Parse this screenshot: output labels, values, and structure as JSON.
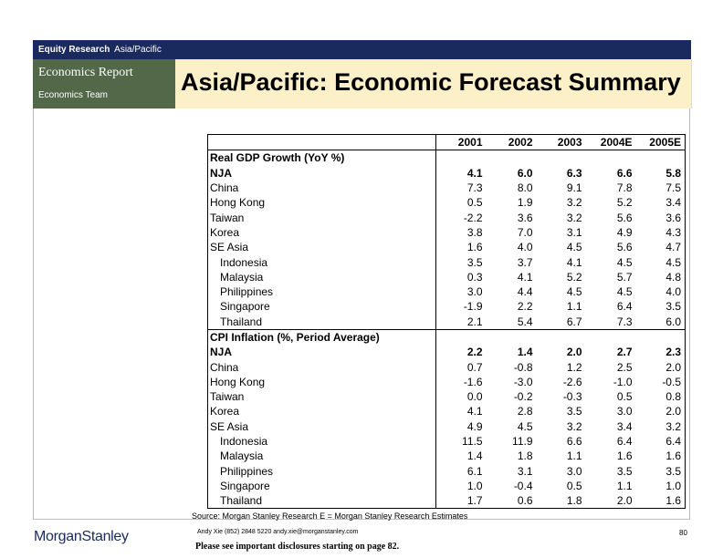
{
  "header": {
    "bar_bold": "Equity Research",
    "bar_region": "Asia/Pacific",
    "report_type": "Economics Report",
    "team": "Economics Team",
    "title": "Asia/Pacific: Economic Forecast Summary"
  },
  "table": {
    "columns": [
      "",
      "2001",
      "2002",
      "2003",
      "2004E",
      "2005E"
    ],
    "sections": [
      {
        "title": "Real GDP Growth (YoY %)",
        "rows": [
          {
            "label": "NJA",
            "values": [
              "4.1",
              "6.0",
              "6.3",
              "6.6",
              "5.8"
            ],
            "bold": true,
            "indent": false
          },
          {
            "label": "China",
            "values": [
              "7.3",
              "8.0",
              "9.1",
              "7.8",
              "7.5"
            ],
            "bold": false,
            "indent": false
          },
          {
            "label": "Hong Kong",
            "values": [
              "0.5",
              "1.9",
              "3.2",
              "5.2",
              "3.4"
            ],
            "bold": false,
            "indent": false
          },
          {
            "label": "Taiwan",
            "values": [
              "-2.2",
              "3.6",
              "3.2",
              "5.6",
              "3.6"
            ],
            "bold": false,
            "indent": false
          },
          {
            "label": "Korea",
            "values": [
              "3.8",
              "7.0",
              "3.1",
              "4.9",
              "4.3"
            ],
            "bold": false,
            "indent": false
          },
          {
            "label": "SE Asia",
            "values": [
              "1.6",
              "4.0",
              "4.5",
              "5.6",
              "4.7"
            ],
            "bold": false,
            "indent": false
          },
          {
            "label": "Indonesia",
            "values": [
              "3.5",
              "3.7",
              "4.1",
              "4.5",
              "4.5"
            ],
            "bold": false,
            "indent": true
          },
          {
            "label": "Malaysia",
            "values": [
              "0.3",
              "4.1",
              "5.2",
              "5.7",
              "4.8"
            ],
            "bold": false,
            "indent": true
          },
          {
            "label": "Philippines",
            "values": [
              "3.0",
              "4.4",
              "4.5",
              "4.5",
              "4.0"
            ],
            "bold": false,
            "indent": true
          },
          {
            "label": "Singapore",
            "values": [
              "-1.9",
              "2.2",
              "1.1",
              "6.4",
              "3.5"
            ],
            "bold": false,
            "indent": true
          },
          {
            "label": "Thailand",
            "values": [
              "2.1",
              "5.4",
              "6.7",
              "7.3",
              "6.0"
            ],
            "bold": false,
            "indent": true
          }
        ]
      },
      {
        "title": "CPI Inflation (%, Period Average)",
        "rows": [
          {
            "label": "NJA",
            "values": [
              "2.2",
              "1.4",
              "2.0",
              "2.7",
              "2.3"
            ],
            "bold": true,
            "indent": false
          },
          {
            "label": "China",
            "values": [
              "0.7",
              "-0.8",
              "1.2",
              "2.5",
              "2.0"
            ],
            "bold": false,
            "indent": false
          },
          {
            "label": "Hong Kong",
            "values": [
              "-1.6",
              "-3.0",
              "-2.6",
              "-1.0",
              "-0.5"
            ],
            "bold": false,
            "indent": false
          },
          {
            "label": "Taiwan",
            "values": [
              "0.0",
              "-0.2",
              "-0.3",
              "0.5",
              "0.8"
            ],
            "bold": false,
            "indent": false
          },
          {
            "label": "Korea",
            "values": [
              "4.1",
              "2.8",
              "3.5",
              "3.0",
              "2.0"
            ],
            "bold": false,
            "indent": false
          },
          {
            "label": "SE Asia",
            "values": [
              "4.9",
              "4.5",
              "3.2",
              "3.4",
              "3.2"
            ],
            "bold": false,
            "indent": false
          },
          {
            "label": "Indonesia",
            "values": [
              "11.5",
              "11.9",
              "6.6",
              "6.4",
              "6.4"
            ],
            "bold": false,
            "indent": true
          },
          {
            "label": "Malaysia",
            "values": [
              "1.4",
              "1.8",
              "1.1",
              "1.6",
              "1.6"
            ],
            "bold": false,
            "indent": true
          },
          {
            "label": "Philippines",
            "values": [
              "6.1",
              "3.1",
              "3.0",
              "3.5",
              "3.5"
            ],
            "bold": false,
            "indent": true
          },
          {
            "label": "Singapore",
            "values": [
              "1.0",
              "-0.4",
              "0.5",
              "1.1",
              "1.0"
            ],
            "bold": false,
            "indent": true
          },
          {
            "label": "Thailand",
            "values": [
              "1.7",
              "0.6",
              "1.8",
              "2.0",
              "1.6"
            ],
            "bold": false,
            "indent": true
          }
        ]
      }
    ]
  },
  "footer": {
    "source": "Source: Morgan Stanley Research E = Morgan Stanley Research Estimates",
    "logo_part1": "Morgan",
    "logo_part2": "Stanley",
    "contact": "Andy Xie (852) 2848 5220  andy.xie@morganstanley.com",
    "disclosure": "Please see important disclosures starting on page 82.",
    "page_number": "80"
  }
}
